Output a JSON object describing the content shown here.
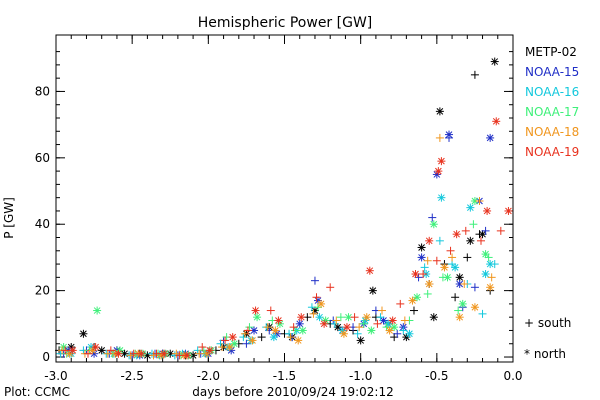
{
  "chart_data": {
    "type": "scatter",
    "title": "Hemispheric Power [GW]",
    "xlabel": "days before 2010/09/24 19:02:12",
    "ylabel": "P [GW]",
    "xlim": [
      -3.0,
      0.0
    ],
    "ylim": [
      -1.5,
      97
    ],
    "x_ticks": [
      -3.0,
      -2.5,
      -2.0,
      -1.5,
      -1.0,
      -0.5,
      0.0
    ],
    "x_tick_labels": [
      "-3.0",
      "-2.5",
      "-2.0",
      "-1.5",
      "-1.0",
      "-0.5",
      "0.0"
    ],
    "y_ticks": [
      0,
      20,
      40,
      60,
      80
    ],
    "y_tick_labels": [
      "0",
      "20",
      "40",
      "60",
      "80"
    ],
    "grid": false,
    "legend_position": "right",
    "marker_legend": {
      "south": "+ south",
      "north": "* north"
    },
    "footer": "Plot: CCMC",
    "series": [
      {
        "name": "METP-02",
        "color": "#000000",
        "south": [
          [
            -2.98,
            2
          ],
          [
            -2.75,
            3
          ],
          [
            -2.6,
            2
          ],
          [
            -2.45,
            1
          ],
          [
            -2.3,
            1
          ],
          [
            -2.15,
            0.5
          ],
          [
            -1.95,
            2
          ],
          [
            -1.8,
            4
          ],
          [
            -1.65,
            6
          ],
          [
            -1.5,
            7
          ],
          [
            -1.35,
            12
          ],
          [
            -1.2,
            10
          ],
          [
            -1.05,
            8
          ],
          [
            -0.9,
            12
          ],
          [
            -0.78,
            6
          ],
          [
            -0.65,
            14
          ],
          [
            -0.55,
            22
          ],
          [
            -0.45,
            28
          ],
          [
            -0.38,
            18
          ],
          [
            -0.3,
            30
          ],
          [
            -0.22,
            37
          ],
          [
            -0.15,
            20
          ],
          [
            -0.25,
            85
          ]
        ],
        "north": [
          [
            -2.9,
            3
          ],
          [
            -2.82,
            7
          ],
          [
            -2.7,
            2
          ],
          [
            -2.55,
            1
          ],
          [
            -2.4,
            0.5
          ],
          [
            -2.25,
            1
          ],
          [
            -2.1,
            0.5
          ],
          [
            -1.9,
            3
          ],
          [
            -1.75,
            7
          ],
          [
            -1.6,
            9
          ],
          [
            -1.45,
            6
          ],
          [
            -1.3,
            14
          ],
          [
            -1.15,
            9
          ],
          [
            -1.0,
            5
          ],
          [
            -0.92,
            20
          ],
          [
            -0.82,
            10
          ],
          [
            -0.7,
            6
          ],
          [
            -0.6,
            33
          ],
          [
            -0.52,
            12
          ],
          [
            -0.48,
            74
          ],
          [
            -0.35,
            24
          ],
          [
            -0.28,
            35
          ],
          [
            -0.2,
            37
          ],
          [
            -0.12,
            89
          ]
        ]
      },
      {
        "name": "NOAA-15",
        "color": "#1f2fc7",
        "south": [
          [
            -2.95,
            1
          ],
          [
            -2.8,
            2
          ],
          [
            -2.65,
            1
          ],
          [
            -2.5,
            0.5
          ],
          [
            -2.35,
            1
          ],
          [
            -2.2,
            0.5
          ],
          [
            -2.05,
            1
          ],
          [
            -1.9,
            5
          ],
          [
            -1.75,
            4
          ],
          [
            -1.6,
            8
          ],
          [
            -1.45,
            6
          ],
          [
            -1.3,
            23
          ],
          [
            -1.18,
            11
          ],
          [
            -1.05,
            9
          ],
          [
            -0.9,
            14
          ],
          [
            -0.76,
            7
          ],
          [
            -0.62,
            24
          ],
          [
            -0.53,
            42
          ],
          [
            -0.42,
            66
          ],
          [
            -0.33,
            15
          ],
          [
            -0.25,
            21
          ],
          [
            -0.18,
            38
          ]
        ],
        "north": [
          [
            -2.92,
            2
          ],
          [
            -2.75,
            1
          ],
          [
            -2.6,
            2
          ],
          [
            -2.45,
            0.5
          ],
          [
            -2.3,
            1
          ],
          [
            -2.15,
            1
          ],
          [
            -2.0,
            1
          ],
          [
            -1.85,
            2
          ],
          [
            -1.7,
            8
          ],
          [
            -1.55,
            7
          ],
          [
            -1.4,
            10
          ],
          [
            -1.28,
            17
          ],
          [
            -1.12,
            8
          ],
          [
            -0.98,
            10
          ],
          [
            -0.85,
            11
          ],
          [
            -0.72,
            9
          ],
          [
            -0.6,
            30
          ],
          [
            -0.5,
            55
          ],
          [
            -0.42,
            67
          ],
          [
            -0.35,
            22
          ],
          [
            -0.22,
            47
          ],
          [
            -0.15,
            66
          ]
        ]
      },
      {
        "name": "NOAA-16",
        "color": "#12c8dc",
        "south": [
          [
            -2.97,
            1
          ],
          [
            -2.82,
            2
          ],
          [
            -2.67,
            1
          ],
          [
            -2.52,
            0.5
          ],
          [
            -2.37,
            1
          ],
          [
            -2.22,
            0.5
          ],
          [
            -2.07,
            2
          ],
          [
            -1.92,
            4
          ],
          [
            -1.77,
            6
          ],
          [
            -1.62,
            9
          ],
          [
            -1.47,
            7
          ],
          [
            -1.32,
            15
          ],
          [
            -1.17,
            10
          ],
          [
            -1.02,
            7
          ],
          [
            -0.87,
            12
          ],
          [
            -0.72,
            8
          ],
          [
            -0.58,
            27
          ],
          [
            -0.48,
            35
          ],
          [
            -0.4,
            28
          ],
          [
            -0.3,
            22
          ],
          [
            -0.2,
            13
          ],
          [
            -0.12,
            28
          ]
        ],
        "north": [
          [
            -2.9,
            1
          ],
          [
            -2.77,
            3
          ],
          [
            -2.62,
            1
          ],
          [
            -2.47,
            0.5
          ],
          [
            -2.32,
            0.5
          ],
          [
            -2.17,
            1
          ],
          [
            -2.02,
            1
          ],
          [
            -1.87,
            3
          ],
          [
            -1.72,
            5
          ],
          [
            -1.57,
            6
          ],
          [
            -1.42,
            8
          ],
          [
            -1.27,
            12
          ],
          [
            -1.12,
            8
          ],
          [
            -0.97,
            11
          ],
          [
            -0.82,
            10
          ],
          [
            -0.68,
            7
          ],
          [
            -0.57,
            25
          ],
          [
            -0.47,
            48
          ],
          [
            -0.38,
            27
          ],
          [
            -0.28,
            45
          ],
          [
            -0.18,
            25
          ],
          [
            -0.15,
            28
          ]
        ]
      },
      {
        "name": "NOAA-17",
        "color": "#3ef07a",
        "south": [
          [
            -2.93,
            1
          ],
          [
            -2.78,
            2
          ],
          [
            -2.63,
            1
          ],
          [
            -2.48,
            1
          ],
          [
            -2.33,
            1
          ],
          [
            -2.18,
            0.5
          ],
          [
            -2.03,
            2
          ],
          [
            -1.88,
            6
          ],
          [
            -1.73,
            9
          ],
          [
            -1.58,
            11
          ],
          [
            -1.43,
            8
          ],
          [
            -1.28,
            15
          ],
          [
            -1.13,
            12
          ],
          [
            -0.98,
            10
          ],
          [
            -0.83,
            9
          ],
          [
            -0.68,
            11
          ],
          [
            -0.56,
            19
          ],
          [
            -0.46,
            24
          ],
          [
            -0.36,
            14
          ],
          [
            -0.26,
            40
          ],
          [
            -0.16,
            30
          ]
        ],
        "north": [
          [
            -2.95,
            3
          ],
          [
            -2.73,
            14
          ],
          [
            -2.58,
            2
          ],
          [
            -2.43,
            1
          ],
          [
            -2.28,
            1
          ],
          [
            -2.13,
            0.5
          ],
          [
            -1.98,
            2
          ],
          [
            -1.83,
            4
          ],
          [
            -1.68,
            12
          ],
          [
            -1.53,
            10
          ],
          [
            -1.38,
            8
          ],
          [
            -1.23,
            11
          ],
          [
            -1.08,
            12
          ],
          [
            -0.93,
            8
          ],
          [
            -0.78,
            9
          ],
          [
            -0.63,
            18
          ],
          [
            -0.52,
            40
          ],
          [
            -0.43,
            24
          ],
          [
            -0.33,
            16
          ],
          [
            -0.25,
            47
          ],
          [
            -0.18,
            31
          ]
        ]
      },
      {
        "name": "NOAA-18",
        "color": "#f0961e",
        "south": [
          [
            -2.96,
            2
          ],
          [
            -2.81,
            1
          ],
          [
            -2.66,
            1
          ],
          [
            -2.51,
            0.5
          ],
          [
            -2.36,
            0.5
          ],
          [
            -2.21,
            1
          ],
          [
            -2.06,
            1
          ],
          [
            -1.91,
            3
          ],
          [
            -1.76,
            7
          ],
          [
            -1.61,
            9
          ],
          [
            -1.46,
            6
          ],
          [
            -1.31,
            13
          ],
          [
            -1.16,
            11
          ],
          [
            -1.01,
            9
          ],
          [
            -0.86,
            14
          ],
          [
            -0.71,
            11
          ],
          [
            -0.56,
            29
          ],
          [
            -0.48,
            66
          ],
          [
            -0.4,
            30
          ],
          [
            -0.32,
            22
          ],
          [
            -0.22,
            47
          ],
          [
            -0.14,
            24
          ]
        ],
        "north": [
          [
            -2.91,
            1
          ],
          [
            -2.76,
            2
          ],
          [
            -2.61,
            1
          ],
          [
            -2.46,
            1
          ],
          [
            -2.31,
            0.5
          ],
          [
            -2.16,
            0.5
          ],
          [
            -2.01,
            1
          ],
          [
            -1.86,
            3
          ],
          [
            -1.71,
            5
          ],
          [
            -1.56,
            8
          ],
          [
            -1.41,
            5
          ],
          [
            -1.26,
            16
          ],
          [
            -1.11,
            7
          ],
          [
            -0.96,
            12
          ],
          [
            -0.81,
            8
          ],
          [
            -0.66,
            17
          ],
          [
            -0.55,
            22
          ],
          [
            -0.45,
            27
          ],
          [
            -0.35,
            12
          ],
          [
            -0.25,
            15
          ],
          [
            -0.15,
            21
          ]
        ]
      },
      {
        "name": "NOAA-19",
        "color": "#e8321e",
        "south": [
          [
            -2.94,
            2
          ],
          [
            -2.79,
            1
          ],
          [
            -2.64,
            2
          ],
          [
            -2.49,
            1
          ],
          [
            -2.34,
            1
          ],
          [
            -2.19,
            0.5
          ],
          [
            -2.04,
            3
          ],
          [
            -1.89,
            5
          ],
          [
            -1.74,
            8
          ],
          [
            -1.59,
            14
          ],
          [
            -1.44,
            9
          ],
          [
            -1.29,
            18
          ],
          [
            -1.2,
            21
          ],
          [
            -1.04,
            12
          ],
          [
            -0.89,
            10
          ],
          [
            -0.74,
            16
          ],
          [
            -0.59,
            25
          ],
          [
            -0.5,
            29
          ],
          [
            -0.41,
            32
          ],
          [
            -0.31,
            38
          ],
          [
            -0.21,
            35
          ],
          [
            -0.08,
            38
          ]
        ],
        "north": [
          [
            -2.89,
            2
          ],
          [
            -2.74,
            3
          ],
          [
            -2.59,
            1
          ],
          [
            -2.44,
            1
          ],
          [
            -2.29,
            1
          ],
          [
            -2.14,
            0.5
          ],
          [
            -1.99,
            2
          ],
          [
            -1.84,
            6
          ],
          [
            -1.69,
            14
          ],
          [
            -1.54,
            11
          ],
          [
            -1.39,
            12
          ],
          [
            -1.24,
            10
          ],
          [
            -1.09,
            9
          ],
          [
            -0.94,
            26
          ],
          [
            -0.79,
            11
          ],
          [
            -0.64,
            25
          ],
          [
            -0.55,
            35
          ],
          [
            -0.49,
            56
          ],
          [
            -0.47,
            59
          ],
          [
            -0.37,
            37
          ],
          [
            -0.17,
            44
          ],
          [
            -0.11,
            71
          ],
          [
            -0.03,
            44
          ]
        ]
      }
    ]
  }
}
